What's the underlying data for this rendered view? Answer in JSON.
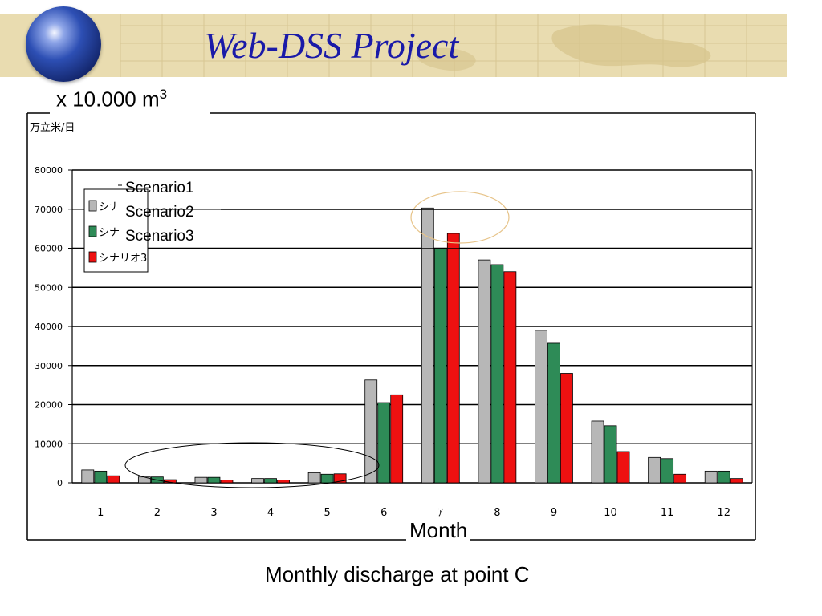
{
  "header": {
    "title": "Web-DSS Project"
  },
  "unit_label": {
    "prefix": "x 10.000 m",
    "superscript": "3"
  },
  "month_label": "Month",
  "caption": "Monthly discharge at point C",
  "legend_overlay": [
    "Scenario1",
    "Scenario2",
    "Scenario3"
  ],
  "colors": {
    "banner": "#e9dcb0",
    "title": "#1a1aa8",
    "annotation_oval": "#e7c48a"
  },
  "chart_data": {
    "type": "bar",
    "unit_text": "万立米/日",
    "categories": [
      "1",
      "2",
      "3",
      "4",
      "5",
      "6",
      "ｱ",
      "8",
      "9",
      "10",
      "11",
      "12"
    ],
    "ylim": [
      0,
      80000
    ],
    "yticks": [
      "80000",
      "70000",
      "60000",
      "50000",
      "40000",
      "30000",
      "20000",
      "10000",
      "0"
    ],
    "grid": true,
    "legend_position": "top-left",
    "series": [
      {
        "name": "シナ",
        "color": "#b7b7b7",
        "values": [
          3300,
          1500,
          1400,
          1100,
          2600,
          26300,
          70300,
          57000,
          39000,
          15800,
          6500,
          3000
        ]
      },
      {
        "name": "シナ",
        "color": "#2e8b57",
        "values": [
          3000,
          1500,
          1400,
          1100,
          2200,
          20500,
          59800,
          55800,
          35700,
          14600,
          6200,
          3000
        ]
      },
      {
        "name": "シナリオ3",
        "color": "#ee1111",
        "values": [
          1800,
          800,
          700,
          700,
          2300,
          22500,
          63800,
          54000,
          28000,
          8000,
          2200,
          1100
        ]
      }
    ]
  }
}
